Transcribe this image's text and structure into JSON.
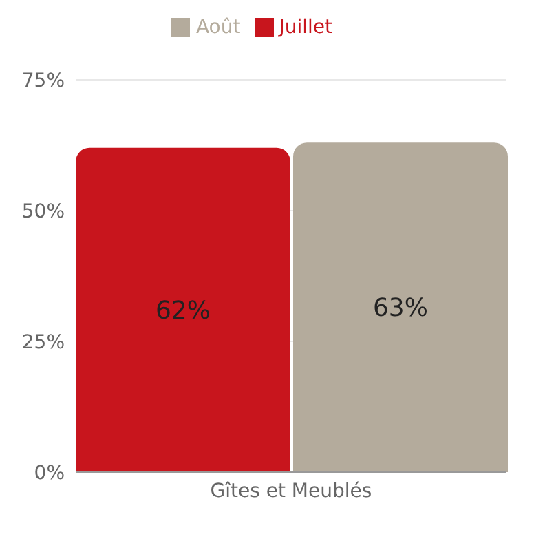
{
  "chart_data": {
    "type": "bar",
    "categories": [
      "Gîtes et Meublés"
    ],
    "series": [
      {
        "name": "Juillet",
        "color": "#c8151d",
        "values": [
          62
        ],
        "value_labels": [
          "62%"
        ]
      },
      {
        "name": "Août",
        "color": "#b4ab9c",
        "values": [
          63
        ],
        "value_labels": [
          "63%"
        ]
      }
    ],
    "ylim": [
      0,
      75
    ],
    "yticks": [
      {
        "value": 0,
        "label": "0%"
      },
      {
        "value": 25,
        "label": "25%"
      },
      {
        "value": 50,
        "label": "50%"
      },
      {
        "value": 75,
        "label": "75%"
      }
    ],
    "grid": "y",
    "legend": "top"
  }
}
